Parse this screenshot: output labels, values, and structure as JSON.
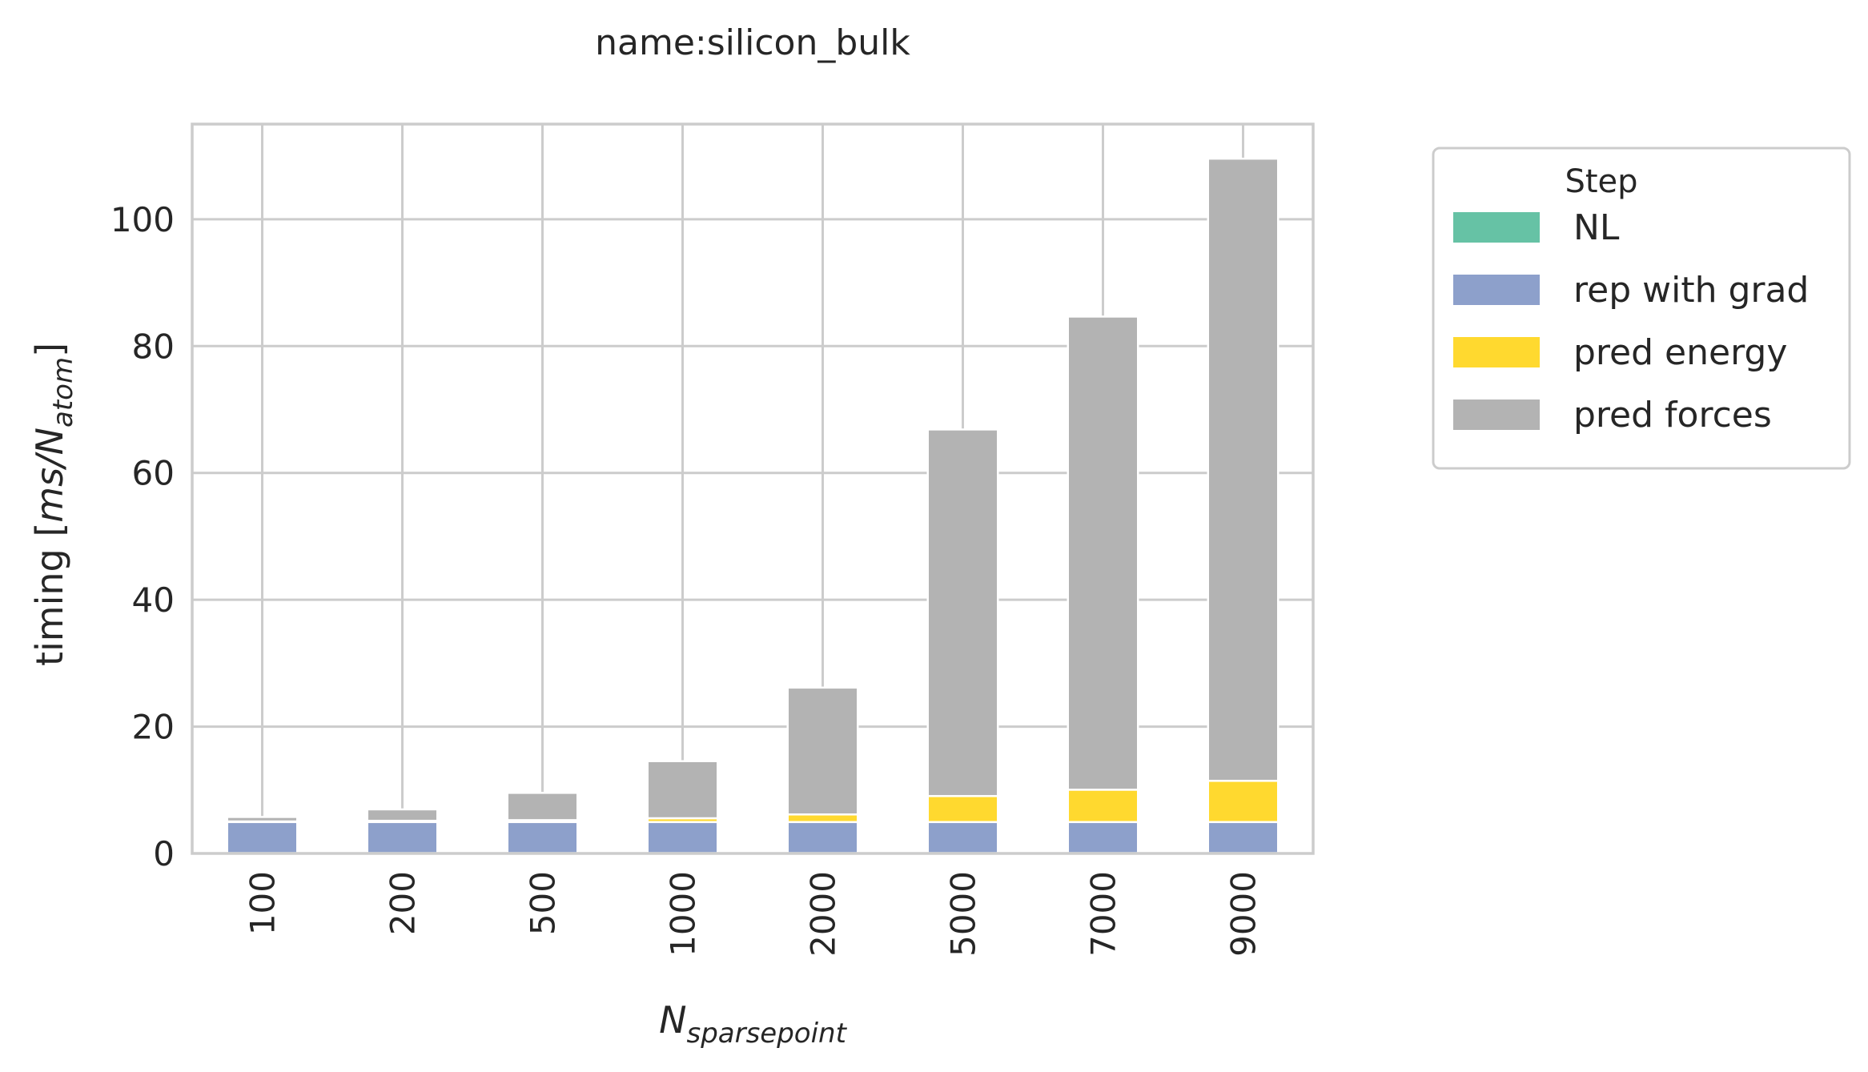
{
  "chart_data": {
    "type": "bar",
    "stacked": true,
    "title": "name:silicon_bulk",
    "xlabel": {
      "base": "N",
      "sub": "sparsepoint"
    },
    "ylabel": {
      "prefix": "timing [",
      "math": "ms/N",
      "sub": "atom",
      "suffix": "]"
    },
    "categories": [
      "100",
      "200",
      "500",
      "1000",
      "2000",
      "5000",
      "7000",
      "9000"
    ],
    "ylim": [
      0,
      115
    ],
    "yticks": [
      0,
      20,
      40,
      60,
      80,
      100
    ],
    "grid": true,
    "legend": {
      "title": "Step",
      "placement": "outside-top-right"
    },
    "series": [
      {
        "name": "NL",
        "color": "#66c2a5",
        "values": [
          0.05,
          0.05,
          0.05,
          0.05,
          0.05,
          0.05,
          0.05,
          0.05
        ]
      },
      {
        "name": "rep with grad",
        "color": "#8da0cb",
        "values": [
          4.9,
          4.9,
          4.9,
          4.9,
          4.9,
          4.9,
          4.9,
          4.9
        ]
      },
      {
        "name": "pred energy",
        "color": "#ffd92f",
        "values": [
          0.1,
          0.2,
          0.3,
          0.6,
          1.2,
          4.1,
          5.1,
          6.5
        ]
      },
      {
        "name": "pred forces",
        "color": "#b3b3b3",
        "values": [
          0.7,
          1.8,
          4.3,
          9.0,
          20.0,
          57.8,
          74.6,
          98.1
        ]
      }
    ]
  }
}
